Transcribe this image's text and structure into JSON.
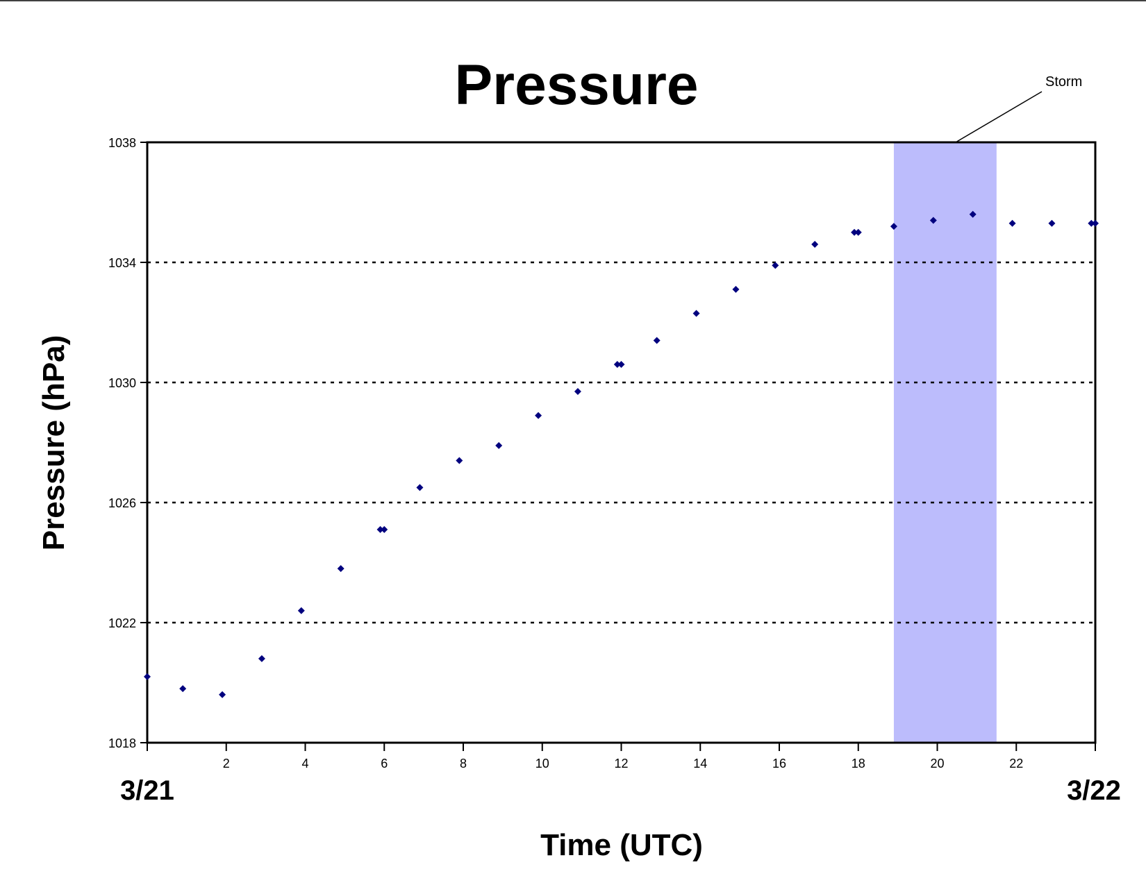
{
  "chart_data": {
    "type": "scatter",
    "title": "Pressure",
    "xlabel": "Time (UTC)",
    "ylabel": "Pressure (hPa)",
    "xlim": [
      0,
      24
    ],
    "ylim": [
      1018,
      1038
    ],
    "xticks": [
      2,
      4,
      6,
      8,
      10,
      12,
      14,
      16,
      18,
      20,
      22
    ],
    "yticks": [
      1018,
      1022,
      1026,
      1030,
      1034,
      1038
    ],
    "grid": "horizontal-dotted",
    "date_labels": {
      "start": "3/21",
      "end": "3/22"
    },
    "storm": {
      "label": "Storm",
      "x_start": 18.9,
      "x_end": 21.5
    },
    "colors": {
      "points": "#00007f",
      "storm_band": "#bcbcfc",
      "axis": "#000000"
    },
    "series": [
      {
        "x": [
          0.0,
          0.9,
          1.9,
          2.9,
          3.9,
          4.9,
          5.9,
          6.0,
          6.9,
          7.9,
          8.9,
          9.9,
          10.9,
          11.9,
          12.0,
          12.9,
          13.9,
          14.9,
          15.9,
          16.9,
          17.9,
          18.0,
          18.9,
          19.9,
          20.9,
          21.9,
          22.9,
          23.9,
          24.0
        ],
        "y": [
          1020.2,
          1019.8,
          1019.6,
          1020.8,
          1022.4,
          1023.8,
          1025.1,
          1025.1,
          1026.5,
          1027.4,
          1027.9,
          1028.9,
          1029.7,
          1030.6,
          1030.6,
          1031.4,
          1032.3,
          1033.1,
          1033.9,
          1034.6,
          1035.0,
          1035.0,
          1035.2,
          1035.4,
          1035.6,
          1035.3,
          1035.3,
          1035.3,
          1035.3
        ]
      }
    ]
  }
}
